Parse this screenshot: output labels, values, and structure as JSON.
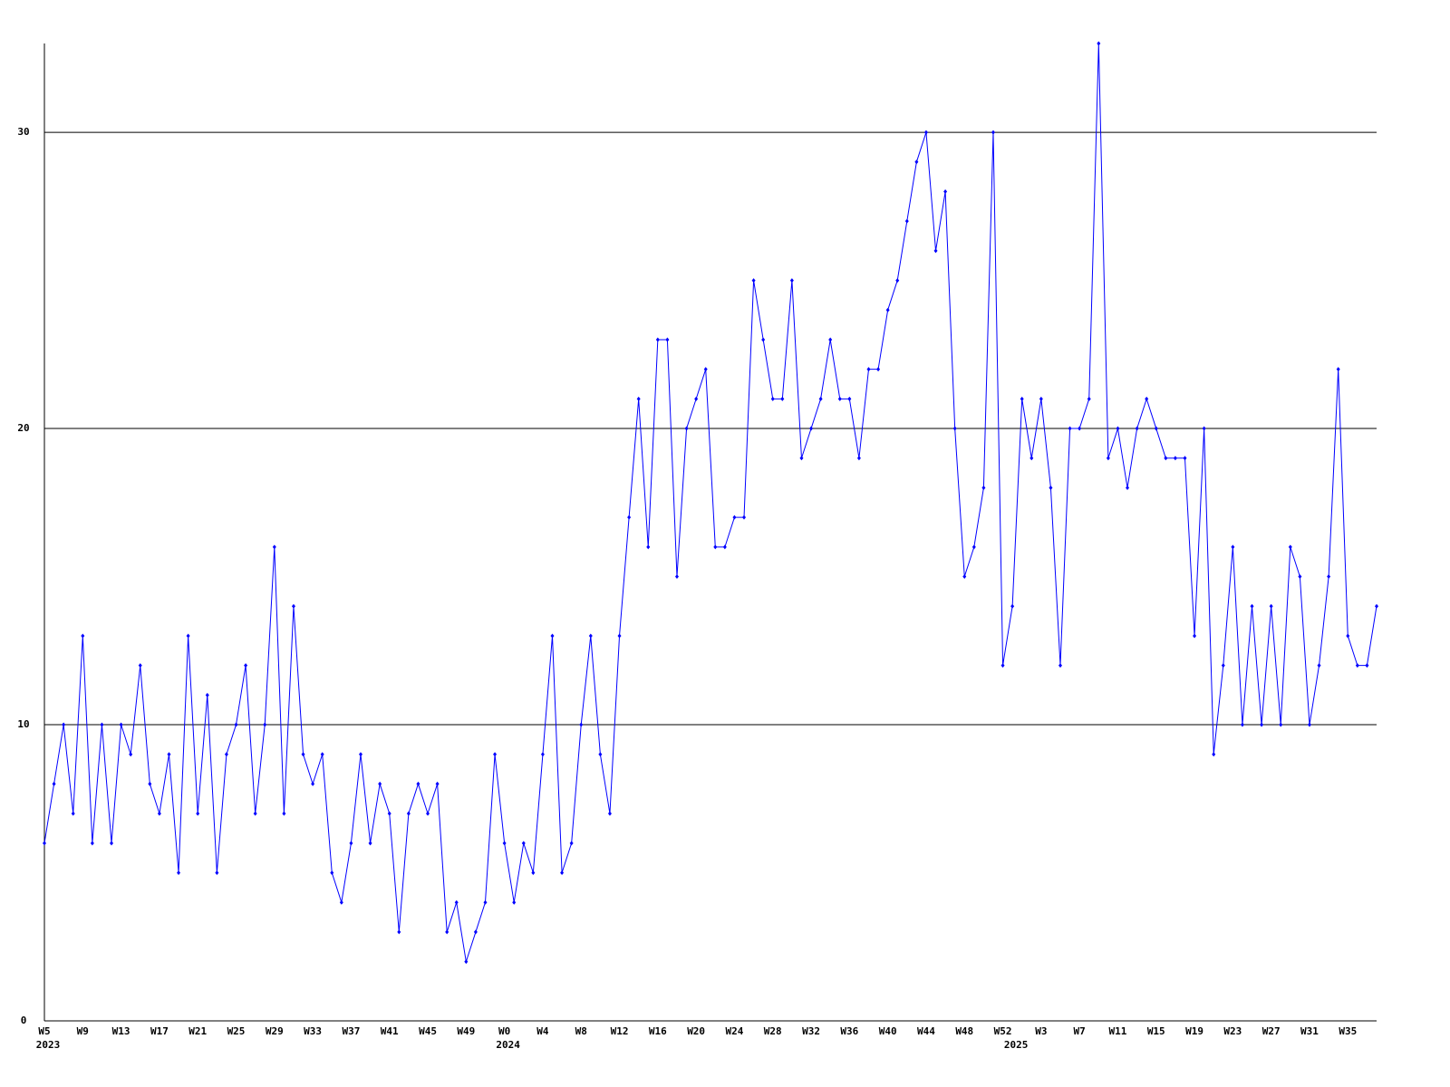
{
  "chart_data": {
    "type": "line",
    "color": "#0000ff",
    "grid": true,
    "ylim": [
      0,
      33
    ],
    "yticks": [
      0,
      10,
      20,
      30
    ],
    "categories": [
      "W5",
      null,
      null,
      null,
      "W9",
      null,
      null,
      null,
      "W13",
      null,
      null,
      null,
      "W17",
      null,
      null,
      null,
      "W21",
      null,
      null,
      null,
      "W25",
      null,
      null,
      null,
      "W29",
      null,
      null,
      null,
      "W33",
      null,
      null,
      null,
      "W37",
      null,
      null,
      null,
      "W41",
      null,
      null,
      null,
      "W45",
      null,
      null,
      null,
      "W49",
      null,
      null,
      null,
      "W0",
      null,
      null,
      null,
      "W4",
      null,
      null,
      null,
      "W8",
      null,
      null,
      null,
      "W12",
      null,
      null,
      null,
      "W16",
      null,
      null,
      null,
      "W20",
      null,
      null,
      null,
      "W24",
      null,
      null,
      null,
      "W28",
      null,
      null,
      null,
      "W32",
      null,
      null,
      null,
      "W36",
      null,
      null,
      null,
      "W40",
      null,
      null,
      null,
      "W44",
      null,
      null,
      null,
      "W48",
      null,
      null,
      null,
      "W52",
      null,
      null,
      null,
      "W3",
      null,
      null,
      null,
      "W7",
      null,
      null,
      null,
      "W11",
      null,
      null,
      null,
      "W15",
      null,
      null,
      null,
      "W19",
      null,
      null,
      null,
      "W23",
      null,
      null,
      null,
      "W27",
      null,
      null,
      null,
      "W31",
      null,
      null,
      null,
      "W35",
      null,
      null,
      null
    ],
    "category_years": [
      "2023",
      null,
      null,
      null,
      null,
      null,
      null,
      null,
      null,
      null,
      null,
      null,
      null,
      null,
      null,
      null,
      null,
      null,
      null,
      null,
      null,
      null,
      null,
      null,
      null,
      null,
      null,
      null,
      null,
      null,
      null,
      null,
      null,
      null,
      null,
      null,
      null,
      null,
      null,
      null,
      null,
      null,
      null,
      null,
      null,
      null,
      null,
      null,
      "2024",
      null,
      null,
      null,
      null,
      null,
      null,
      null,
      null,
      null,
      null,
      null,
      null,
      null,
      null,
      null,
      null,
      null,
      null,
      null,
      null,
      null,
      null,
      null,
      null,
      null,
      null,
      null,
      null,
      null,
      null,
      null,
      null,
      null,
      null,
      null,
      null,
      null,
      null,
      null,
      null,
      null,
      null,
      null,
      null,
      null,
      null,
      null,
      null,
      null,
      null,
      null,
      null,
      "2025",
      null,
      null,
      null,
      null,
      null,
      null,
      null,
      null,
      null,
      null,
      null,
      null,
      null,
      null,
      null,
      null,
      null,
      null,
      null,
      null,
      null,
      null,
      null,
      null,
      null,
      null,
      null,
      null,
      null,
      null,
      null,
      null,
      null,
      null,
      null,
      null,
      null,
      null
    ],
    "values": [
      6,
      8,
      10,
      7,
      13,
      6,
      10,
      6,
      10,
      9,
      12,
      8,
      7,
      9,
      5,
      13,
      7,
      11,
      5,
      9,
      10,
      12,
      7,
      10,
      16,
      7,
      14,
      9,
      8,
      9,
      5,
      4,
      6,
      9,
      6,
      8,
      7,
      3,
      7,
      8,
      7,
      8,
      3,
      4,
      2,
      3,
      4,
      9,
      6,
      4,
      6,
      5,
      9,
      13,
      5,
      6,
      10,
      13,
      9,
      7,
      13,
      17,
      21,
      16,
      23,
      23,
      15,
      20,
      21,
      22,
      16,
      16,
      17,
      17,
      25,
      23,
      21,
      21,
      25,
      19,
      20,
      21,
      23,
      21,
      21,
      19,
      22,
      22,
      24,
      25,
      27,
      29,
      30,
      26,
      28,
      20,
      15,
      16,
      18,
      30,
      12,
      14,
      21,
      19,
      21,
      18,
      12,
      20,
      20,
      21,
      33,
      19,
      20,
      18,
      20,
      21,
      20,
      19,
      19,
      19,
      13,
      20,
      9,
      12,
      16,
      10,
      14,
      10,
      14,
      10,
      16,
      15,
      10,
      12,
      15,
      22,
      13,
      12,
      12,
      14
    ]
  }
}
